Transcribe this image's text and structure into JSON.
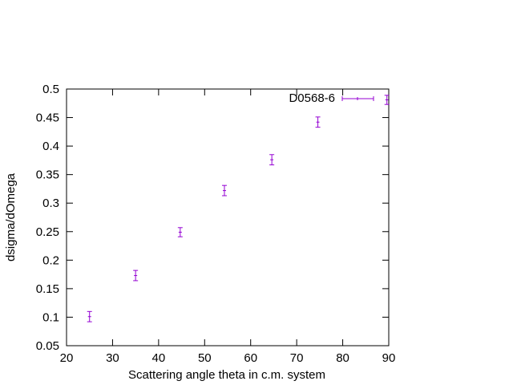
{
  "chart_data": {
    "type": "scatter",
    "title": "",
    "xlabel": "Scattering angle theta in c.m. system",
    "ylabel": "dsigma/dOmega",
    "xlim": [
      20,
      90
    ],
    "ylim": [
      0.05,
      0.5
    ],
    "x_ticks": [
      "20",
      "30",
      "40",
      "50",
      "60",
      "70",
      "80",
      "90"
    ],
    "y_ticks": [
      "0.05",
      "0.1",
      "0.15",
      "0.2",
      "0.25",
      "0.3",
      "0.35",
      "0.4",
      "0.45",
      "0.5"
    ],
    "grid": false,
    "legend_position": "top-right",
    "series": [
      {
        "name": "D0568-6",
        "color": "#9400d3",
        "marker": "plus-with-errorbars",
        "points": [
          {
            "x": 25,
            "y": 0.101,
            "err": 0.009
          },
          {
            "x": 35,
            "y": 0.173,
            "err": 0.009
          },
          {
            "x": 44.7,
            "y": 0.249,
            "err": 0.008
          },
          {
            "x": 54.3,
            "y": 0.322,
            "err": 0.009
          },
          {
            "x": 64.6,
            "y": 0.376,
            "err": 0.009
          },
          {
            "x": 74.6,
            "y": 0.442,
            "err": 0.009
          },
          {
            "x": 89.6,
            "y": 0.481,
            "err": 0.008
          }
        ]
      }
    ]
  }
}
